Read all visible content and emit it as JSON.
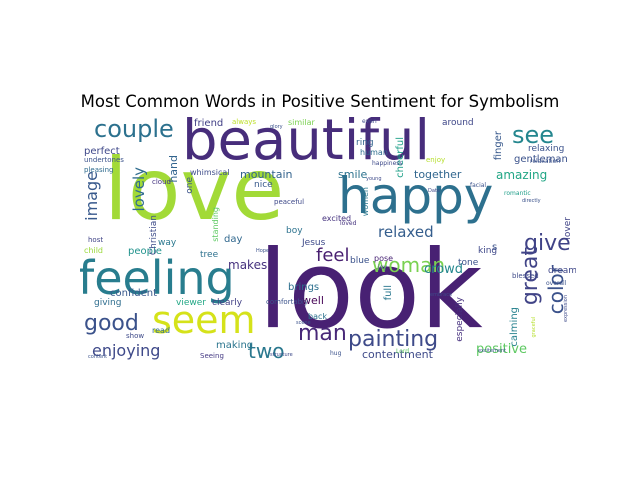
{
  "title": "Most Common Words in Positive Sentiment for Symbolism",
  "words": [
    {
      "text": "love",
      "color": "#a2da37"
    },
    {
      "text": "look",
      "color": "#482173"
    },
    {
      "text": "beautiful",
      "color": "#472d7b"
    },
    {
      "text": "happy",
      "color": "#2d708e"
    },
    {
      "text": "feeling",
      "color": "#287d8e"
    },
    {
      "text": "seem",
      "color": "#d5e21a"
    },
    {
      "text": "couple",
      "color": "#2c718e"
    },
    {
      "text": "see",
      "color": "#24868e"
    },
    {
      "text": "good",
      "color": "#3b528b"
    },
    {
      "text": "woman",
      "color": "#7ad151"
    },
    {
      "text": "painting",
      "color": "#3e4a89"
    },
    {
      "text": "man",
      "color": "#482878"
    },
    {
      "text": "feel",
      "color": "#481f70"
    },
    {
      "text": "give",
      "color": "#404387"
    },
    {
      "text": "enjoying",
      "color": "#3e4989"
    },
    {
      "text": "two",
      "color": "#2a788e"
    },
    {
      "text": "great",
      "color": "#414487"
    },
    {
      "text": "color",
      "color": "#3b528b"
    },
    {
      "text": "relaxed",
      "color": "#355e8d"
    },
    {
      "text": "image",
      "color": "#38598c"
    },
    {
      "text": "lovely",
      "color": "#2f6c8e"
    },
    {
      "text": "positive",
      "color": "#5ec962"
    },
    {
      "text": "contentment",
      "color": "#3e4a89"
    },
    {
      "text": "mountain",
      "color": "#33638d"
    },
    {
      "text": "smile",
      "color": "#2c728e"
    },
    {
      "text": "crowd",
      "color": "#24878e"
    },
    {
      "text": "amazing",
      "color": "#21a685"
    },
    {
      "text": "together",
      "color": "#31668e"
    },
    {
      "text": "friend",
      "color": "#424086"
    },
    {
      "text": "perfect",
      "color": "#3f4889"
    },
    {
      "text": "making",
      "color": "#2b758e"
    },
    {
      "text": "makes",
      "color": "#46327e"
    },
    {
      "text": "confident",
      "color": "#38588c"
    },
    {
      "text": "people",
      "color": "#20928c"
    },
    {
      "text": "brings",
      "color": "#2d708e"
    },
    {
      "text": "well",
      "color": "#440154"
    },
    {
      "text": "hand",
      "color": "#32648e"
    },
    {
      "text": "gentleman",
      "color": "#3b528b"
    },
    {
      "text": "calming",
      "color": "#26818e"
    },
    {
      "text": "relaxing",
      "color": "#3b528b"
    },
    {
      "text": "cheerful",
      "color": "#1fa088"
    },
    {
      "text": "finger",
      "color": "#38598c"
    },
    {
      "text": "full",
      "color": "#2a778e"
    },
    {
      "text": "lover",
      "color": "#414487"
    },
    {
      "text": "dream",
      "color": "#3f4788"
    },
    {
      "text": "especially",
      "color": "#46307e"
    },
    {
      "text": "Christian",
      "color": "#3e4c8a"
    },
    {
      "text": "giving",
      "color": "#2e6d8e"
    },
    {
      "text": "viewer",
      "color": "#22a785"
    },
    {
      "text": "clearly",
      "color": "#424186"
    },
    {
      "text": "Jesus",
      "color": "#3e4a89"
    },
    {
      "text": "blue",
      "color": "#3b528b"
    },
    {
      "text": "pose",
      "color": "#482475"
    },
    {
      "text": "tone",
      "color": "#3b528b"
    },
    {
      "text": "king",
      "color": "#3f4889"
    },
    {
      "text": "human",
      "color": "#2e6e8e"
    },
    {
      "text": "ring",
      "color": "#33638d"
    },
    {
      "text": "around",
      "color": "#3f4788"
    },
    {
      "text": "similar",
      "color": "#7ad151"
    },
    {
      "text": "always",
      "color": "#bddf26"
    },
    {
      "text": "nice",
      "color": "#38598c"
    },
    {
      "text": "boy",
      "color": "#2c728e"
    },
    {
      "text": "day",
      "color": "#31688e"
    },
    {
      "text": "tree",
      "color": "#2d718e"
    },
    {
      "text": "way",
      "color": "#2a788e"
    },
    {
      "text": "read",
      "color": "#2f6b8e"
    },
    {
      "text": "show",
      "color": "#3e4a89"
    },
    {
      "text": "Seeing",
      "color": "#443983"
    },
    {
      "text": "child",
      "color": "#9bd93c"
    },
    {
      "text": "host",
      "color": "#414487"
    },
    {
      "text": "one",
      "color": "#3b528b"
    },
    {
      "text": "whimsical",
      "color": "#3e4c8a"
    },
    {
      "text": "standing",
      "color": "#5ec962"
    },
    {
      "text": "cloud",
      "color": "#453581"
    },
    {
      "text": "excited",
      "color": "#46337f"
    },
    {
      "text": "women",
      "color": "#2a788e"
    },
    {
      "text": "back",
      "color": "#2c728e"
    },
    {
      "text": "loved",
      "color": "#46337f"
    },
    {
      "text": "peaceful",
      "color": "#3e4989"
    },
    {
      "text": "comfortably",
      "color": "#3b528b"
    },
    {
      "text": "enjoy",
      "color": "#b5de2b"
    },
    {
      "text": "blessed",
      "color": "#3e4a89"
    },
    {
      "text": "undertones",
      "color": "#3b528b"
    },
    {
      "text": "pleasing",
      "color": "#2f6b8e"
    },
    {
      "text": "happiness",
      "color": "#3e4a89"
    },
    {
      "text": "relaxation",
      "color": "#3b528b"
    },
    {
      "text": "facial",
      "color": "#3b528b"
    },
    {
      "text": "romantic",
      "color": "#1f9e89"
    },
    {
      "text": "Hope",
      "color": "#3b528b"
    },
    {
      "text": "Lord",
      "color": "#5ec962"
    },
    {
      "text": "excitement",
      "color": "#3b528b"
    },
    {
      "text": "embrace",
      "color": "#3e4a89"
    },
    {
      "text": "scene",
      "color": "#3b528b"
    },
    {
      "text": "young",
      "color": "#3e4a89"
    },
    {
      "text": "hug",
      "color": "#3b528b"
    },
    {
      "text": "structure",
      "color": "#3e4a89"
    },
    {
      "text": "content",
      "color": "#3b528b"
    },
    {
      "text": "even",
      "color": "#3e4a89"
    },
    {
      "text": "overall",
      "color": "#3b528b"
    },
    {
      "text": "expression",
      "color": "#3e4a89"
    },
    {
      "text": "directly",
      "color": "#3b528b"
    },
    {
      "text": "s",
      "color": "#3b528b"
    },
    {
      "text": "Date",
      "color": "#3e4a89"
    },
    {
      "text": "joy",
      "color": "#3b528b"
    },
    {
      "text": "glory",
      "color": "#3b528b"
    },
    {
      "text": "graceful",
      "color": "#b5de2b"
    }
  ]
}
